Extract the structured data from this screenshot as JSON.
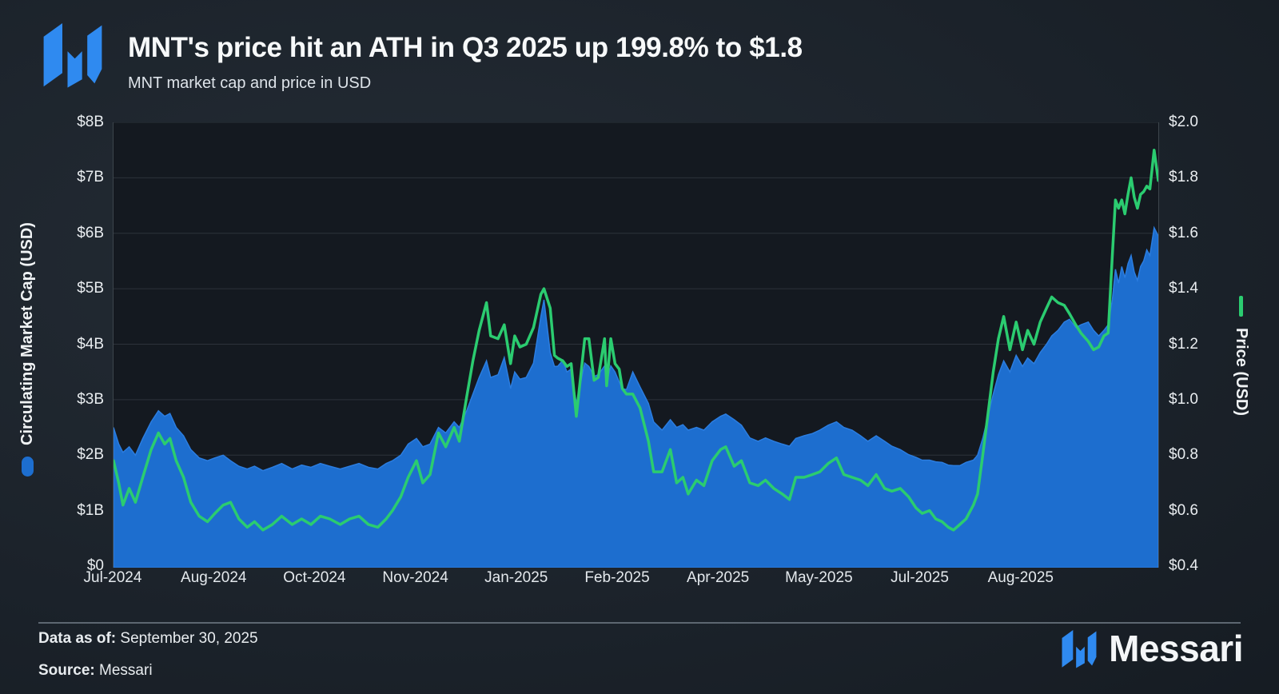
{
  "header": {
    "title": "MNT's price hit an ATH in Q3 2025 up 199.8% to $1.8",
    "subtitle": "MNT market cap and price in USD"
  },
  "footer": {
    "data_as_of_label": "Data as of:",
    "data_as_of_value": " September 30, 2025",
    "source_label": "Source:",
    "source_value": " Messari",
    "brand": "Messari"
  },
  "colors": {
    "market_cap_fill": "#1d6ecf",
    "market_cap_edge": "#2b7de0",
    "price_line": "#2bcc70",
    "gridline": "rgba(174,186,196,0.16)",
    "logo_blue": "#2f8af0"
  },
  "chart_data": {
    "type": "area+line",
    "title": "MNT's price hit an ATH in Q3 2025 up 199.8% to $1.8",
    "subtitle": "MNT market cap and price in USD",
    "grid": "horizontal",
    "x_axis": {
      "labels": [
        "Jul-2024",
        "Aug-2024",
        "Oct-2024",
        "Nov-2024",
        "Jan-2025",
        "Feb-2025",
        "Apr-2025",
        "May-2025",
        "Jul-2025",
        "Aug-2025"
      ],
      "positions": [
        0.0,
        0.0966,
        0.1931,
        0.2897,
        0.3862,
        0.4828,
        0.5793,
        0.6759,
        0.7724,
        0.869
      ],
      "domain_note": "x values below are fractions of the axis from Jul-2024 (0) to Sep-30-2025 (1)"
    },
    "left_axis": {
      "title": "Circulating Market Cap (USD)",
      "tick_labels": [
        "$8B",
        "$7B",
        "$6B",
        "$5B",
        "$4B",
        "$3B",
        "$2B",
        "$1B",
        "$0"
      ],
      "range_billions": [
        0,
        8
      ]
    },
    "right_axis": {
      "title": "Price (USD)",
      "tick_labels": [
        "$2.0",
        "$1.8",
        "$1.6",
        "$1.4",
        "$1.2",
        "$1.0",
        "$0.8",
        "$0.6",
        "$0.4"
      ],
      "range_usd": [
        0.4,
        2.0
      ]
    },
    "series_names": [
      "Circulating Market Cap (USD, billions)",
      "Price (USD)"
    ],
    "points": [
      [
        0.0,
        2.5,
        0.78
      ],
      [
        0.005,
        2.2,
        0.7
      ],
      [
        0.009,
        2.05,
        0.62
      ],
      [
        0.015,
        2.15,
        0.68
      ],
      [
        0.021,
        2.0,
        0.63
      ],
      [
        0.028,
        2.3,
        0.72
      ],
      [
        0.036,
        2.6,
        0.82
      ],
      [
        0.043,
        2.8,
        0.88
      ],
      [
        0.049,
        2.7,
        0.84
      ],
      [
        0.054,
        2.75,
        0.86
      ],
      [
        0.06,
        2.5,
        0.78
      ],
      [
        0.067,
        2.35,
        0.72
      ],
      [
        0.074,
        2.1,
        0.63
      ],
      [
        0.082,
        1.95,
        0.58
      ],
      [
        0.09,
        1.9,
        0.56
      ],
      [
        0.097,
        1.95,
        0.59
      ],
      [
        0.105,
        2.0,
        0.62
      ],
      [
        0.112,
        1.9,
        0.63
      ],
      [
        0.12,
        1.8,
        0.57
      ],
      [
        0.128,
        1.75,
        0.54
      ],
      [
        0.135,
        1.8,
        0.56
      ],
      [
        0.143,
        1.72,
        0.53
      ],
      [
        0.152,
        1.78,
        0.55
      ],
      [
        0.161,
        1.85,
        0.58
      ],
      [
        0.171,
        1.75,
        0.55
      ],
      [
        0.18,
        1.82,
        0.57
      ],
      [
        0.189,
        1.78,
        0.55
      ],
      [
        0.198,
        1.85,
        0.58
      ],
      [
        0.207,
        1.8,
        0.57
      ],
      [
        0.217,
        1.75,
        0.55
      ],
      [
        0.226,
        1.8,
        0.57
      ],
      [
        0.235,
        1.85,
        0.58
      ],
      [
        0.244,
        1.78,
        0.55
      ],
      [
        0.253,
        1.75,
        0.54
      ],
      [
        0.261,
        1.85,
        0.57
      ],
      [
        0.267,
        1.9,
        0.6
      ],
      [
        0.275,
        2.0,
        0.65
      ],
      [
        0.282,
        2.2,
        0.72
      ],
      [
        0.29,
        2.3,
        0.78
      ],
      [
        0.296,
        2.15,
        0.7
      ],
      [
        0.303,
        2.2,
        0.73
      ],
      [
        0.311,
        2.5,
        0.88
      ],
      [
        0.318,
        2.4,
        0.83
      ],
      [
        0.326,
        2.6,
        0.9
      ],
      [
        0.331,
        2.5,
        0.85
      ],
      [
        0.338,
        2.8,
        1.01
      ],
      [
        0.344,
        3.1,
        1.14
      ],
      [
        0.35,
        3.4,
        1.25
      ],
      [
        0.357,
        3.7,
        1.35
      ],
      [
        0.361,
        3.4,
        1.23
      ],
      [
        0.368,
        3.45,
        1.22
      ],
      [
        0.374,
        3.76,
        1.27
      ],
      [
        0.38,
        3.2,
        1.13
      ],
      [
        0.384,
        3.5,
        1.23
      ],
      [
        0.389,
        3.37,
        1.19
      ],
      [
        0.395,
        3.4,
        1.2
      ],
      [
        0.402,
        3.66,
        1.26
      ],
      [
        0.409,
        4.5,
        1.38
      ],
      [
        0.412,
        4.8,
        1.4
      ],
      [
        0.418,
        3.85,
        1.33
      ],
      [
        0.422,
        3.6,
        1.16
      ],
      [
        0.425,
        3.6,
        1.15
      ],
      [
        0.43,
        3.71,
        1.14
      ],
      [
        0.434,
        3.5,
        1.12
      ],
      [
        0.438,
        3.55,
        1.13
      ],
      [
        0.443,
        2.93,
        0.94
      ],
      [
        0.451,
        3.66,
        1.22
      ],
      [
        0.455,
        3.6,
        1.22
      ],
      [
        0.46,
        3.42,
        1.07
      ],
      [
        0.464,
        3.45,
        1.08
      ],
      [
        0.47,
        3.61,
        1.22
      ],
      [
        0.472,
        3.3,
        1.05
      ],
      [
        0.476,
        3.61,
        1.22
      ],
      [
        0.48,
        3.5,
        1.13
      ],
      [
        0.484,
        3.32,
        1.11
      ],
      [
        0.487,
        3.2,
        1.04
      ],
      [
        0.491,
        3.18,
        1.02
      ],
      [
        0.497,
        3.5,
        1.02
      ],
      [
        0.504,
        3.23,
        0.97
      ],
      [
        0.512,
        2.93,
        0.85
      ],
      [
        0.517,
        2.6,
        0.74
      ],
      [
        0.525,
        2.45,
        0.74
      ],
      [
        0.533,
        2.64,
        0.82
      ],
      [
        0.539,
        2.5,
        0.7
      ],
      [
        0.545,
        2.55,
        0.72
      ],
      [
        0.55,
        2.45,
        0.66
      ],
      [
        0.558,
        2.5,
        0.71
      ],
      [
        0.565,
        2.45,
        0.69
      ],
      [
        0.573,
        2.6,
        0.78
      ],
      [
        0.581,
        2.7,
        0.82
      ],
      [
        0.586,
        2.74,
        0.83
      ],
      [
        0.594,
        2.64,
        0.76
      ],
      [
        0.601,
        2.54,
        0.78
      ],
      [
        0.609,
        2.31,
        0.7
      ],
      [
        0.617,
        2.25,
        0.69
      ],
      [
        0.624,
        2.31,
        0.71
      ],
      [
        0.632,
        2.25,
        0.68
      ],
      [
        0.64,
        2.2,
        0.66
      ],
      [
        0.647,
        2.16,
        0.64
      ],
      [
        0.653,
        2.3,
        0.72
      ],
      [
        0.661,
        2.35,
        0.72
      ],
      [
        0.669,
        2.39,
        0.73
      ],
      [
        0.676,
        2.45,
        0.74
      ],
      [
        0.684,
        2.54,
        0.77
      ],
      [
        0.692,
        2.6,
        0.79
      ],
      [
        0.699,
        2.5,
        0.73
      ],
      [
        0.707,
        2.45,
        0.72
      ],
      [
        0.715,
        2.35,
        0.71
      ],
      [
        0.722,
        2.25,
        0.69
      ],
      [
        0.73,
        2.35,
        0.73
      ],
      [
        0.738,
        2.25,
        0.68
      ],
      [
        0.745,
        2.16,
        0.67
      ],
      [
        0.753,
        2.1,
        0.68
      ],
      [
        0.761,
        2.01,
        0.65
      ],
      [
        0.768,
        1.96,
        0.61
      ],
      [
        0.774,
        1.91,
        0.59
      ],
      [
        0.781,
        1.91,
        0.6
      ],
      [
        0.787,
        1.88,
        0.57
      ],
      [
        0.793,
        1.87,
        0.56
      ],
      [
        0.799,
        1.82,
        0.54
      ],
      [
        0.804,
        1.81,
        0.53
      ],
      [
        0.81,
        1.81,
        0.55
      ],
      [
        0.816,
        1.87,
        0.57
      ],
      [
        0.823,
        1.91,
        0.62
      ],
      [
        0.827,
        2.0,
        0.66
      ],
      [
        0.832,
        2.3,
        0.8
      ],
      [
        0.837,
        2.7,
        0.95
      ],
      [
        0.842,
        3.1,
        1.1
      ],
      [
        0.847,
        3.45,
        1.22
      ],
      [
        0.852,
        3.7,
        1.3
      ],
      [
        0.858,
        3.5,
        1.18
      ],
      [
        0.864,
        3.8,
        1.28
      ],
      [
        0.87,
        3.6,
        1.18
      ],
      [
        0.875,
        3.75,
        1.25
      ],
      [
        0.881,
        3.65,
        1.2
      ],
      [
        0.887,
        3.85,
        1.28
      ],
      [
        0.893,
        4.0,
        1.33
      ],
      [
        0.898,
        4.15,
        1.37
      ],
      [
        0.904,
        4.25,
        1.35
      ],
      [
        0.91,
        4.4,
        1.34
      ],
      [
        0.915,
        4.45,
        1.31
      ],
      [
        0.921,
        4.3,
        1.27
      ],
      [
        0.926,
        4.35,
        1.24
      ],
      [
        0.933,
        4.4,
        1.21
      ],
      [
        0.938,
        4.25,
        1.18
      ],
      [
        0.943,
        4.15,
        1.19
      ],
      [
        0.948,
        4.25,
        1.23
      ],
      [
        0.952,
        4.35,
        1.24
      ],
      [
        0.956,
        4.8,
        1.52
      ],
      [
        0.959,
        5.35,
        1.72
      ],
      [
        0.962,
        5.1,
        1.69
      ],
      [
        0.965,
        5.4,
        1.72
      ],
      [
        0.968,
        5.2,
        1.67
      ],
      [
        0.971,
        5.45,
        1.74
      ],
      [
        0.974,
        5.6,
        1.8
      ],
      [
        0.977,
        5.3,
        1.73
      ],
      [
        0.98,
        5.15,
        1.69
      ],
      [
        0.983,
        5.4,
        1.74
      ],
      [
        0.986,
        5.5,
        1.75
      ],
      [
        0.989,
        5.7,
        1.77
      ],
      [
        0.992,
        5.6,
        1.76
      ],
      [
        0.996,
        6.1,
        1.9
      ],
      [
        1.0,
        5.95,
        1.79
      ]
    ]
  }
}
